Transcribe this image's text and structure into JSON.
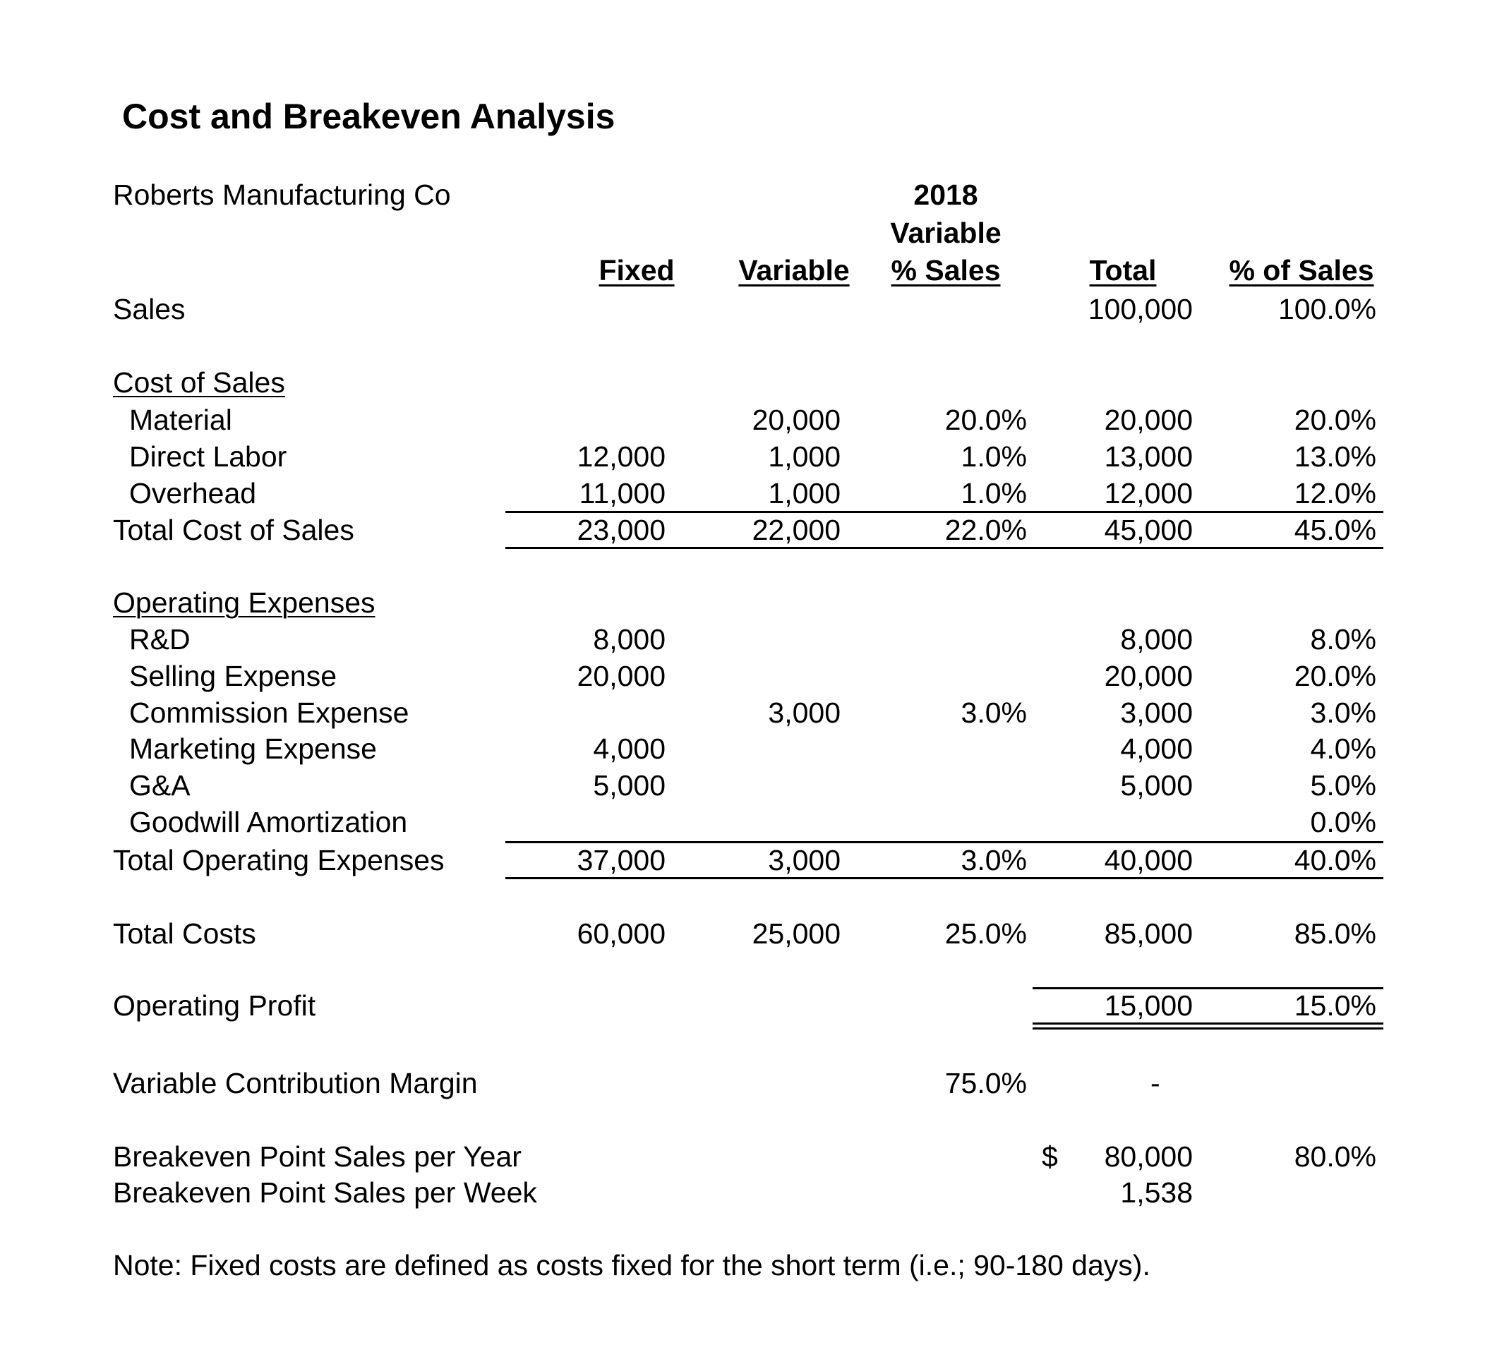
{
  "title": "Cost and Breakeven Analysis",
  "company": "Roberts Manufacturing Co",
  "headers": {
    "year": "2018",
    "variable_pct_line1": "Variable",
    "variable_pct_line2": "% Sales",
    "fixed": "Fixed",
    "variable": "Variable",
    "total": "Total",
    "pct_of_sales": "% of Sales"
  },
  "sales": {
    "label": "Sales",
    "total": "100,000",
    "pct": "100.0%"
  },
  "cost_of_sales": {
    "heading": "Cost of Sales",
    "rows": [
      {
        "label": "Material",
        "fixed": "",
        "variable": "20,000",
        "var_pct": "20.0%",
        "total": "20,000",
        "pct": "20.0%"
      },
      {
        "label": "Direct Labor",
        "fixed": "12,000",
        "variable": "1,000",
        "var_pct": "1.0%",
        "total": "13,000",
        "pct": "13.0%"
      },
      {
        "label": "Overhead",
        "fixed": "11,000",
        "variable": "1,000",
        "var_pct": "1.0%",
        "total": "12,000",
        "pct": "12.0%"
      }
    ],
    "total": {
      "label": "Total Cost of Sales",
      "fixed": "23,000",
      "variable": "22,000",
      "var_pct": "22.0%",
      "total": "45,000",
      "pct": "45.0%"
    }
  },
  "operating_expenses": {
    "heading": "Operating Expenses",
    "rows": [
      {
        "label": "R&D",
        "fixed": "8,000",
        "variable": "",
        "var_pct": "",
        "total": "8,000",
        "pct": "8.0%"
      },
      {
        "label": "Selling Expense",
        "fixed": "20,000",
        "variable": "",
        "var_pct": "",
        "total": "20,000",
        "pct": "20.0%"
      },
      {
        "label": "Commission Expense",
        "fixed": "",
        "variable": "3,000",
        "var_pct": "3.0%",
        "total": "3,000",
        "pct": "3.0%"
      },
      {
        "label": "Marketing Expense",
        "fixed": "4,000",
        "variable": "",
        "var_pct": "",
        "total": "4,000",
        "pct": "4.0%"
      },
      {
        "label": "G&A",
        "fixed": "5,000",
        "variable": "",
        "var_pct": "",
        "total": "5,000",
        "pct": "5.0%"
      },
      {
        "label": "Goodwill Amortization",
        "fixed": "",
        "variable": "",
        "var_pct": "",
        "total": "",
        "pct": "0.0%"
      }
    ],
    "total": {
      "label": "Total Operating Expenses",
      "fixed": "37,000",
      "variable": "3,000",
      "var_pct": "3.0%",
      "total": "40,000",
      "pct": "40.0%"
    }
  },
  "total_costs": {
    "label": "Total Costs",
    "fixed": "60,000",
    "variable": "25,000",
    "var_pct": "25.0%",
    "total": "85,000",
    "pct": "85.0%"
  },
  "operating_profit": {
    "label": "Operating Profit",
    "total": "15,000",
    "pct": "15.0%"
  },
  "contribution_margin": {
    "label": "Variable Contribution Margin",
    "var_pct": "75.0%",
    "total": "-"
  },
  "breakeven_year": {
    "label": "Breakeven Point Sales per Year",
    "currency": "$",
    "total": "80,000",
    "pct": "80.0%"
  },
  "breakeven_week": {
    "label": "Breakeven Point Sales per Week",
    "total": "1,538"
  },
  "note": "Note: Fixed costs are defined as costs fixed for the short term (i.e.; 90-180 days)."
}
